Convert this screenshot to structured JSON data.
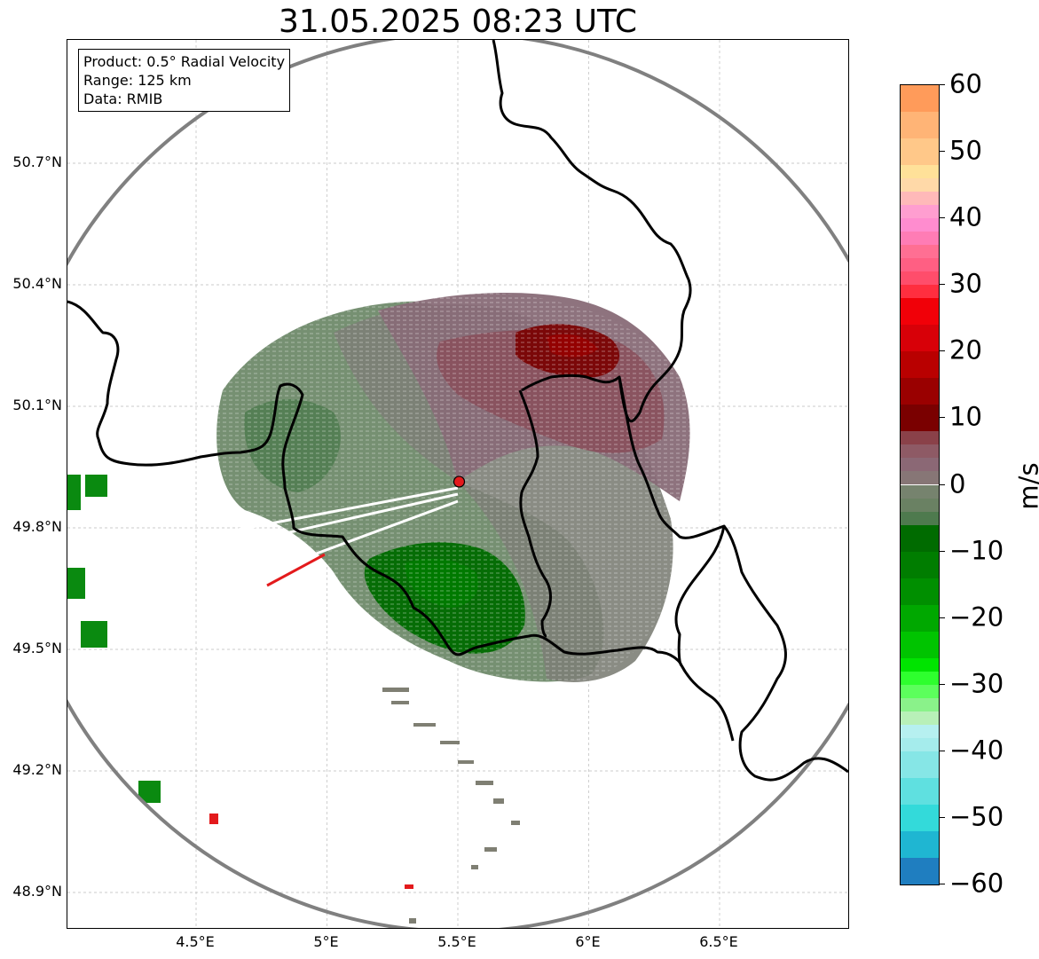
{
  "title": "31.05.2025 08:23 UTC",
  "info_box": {
    "product": "Product: 0.5° Radial Velocity",
    "range": "Range: 125 km",
    "source": "Data: RMIB"
  },
  "map": {
    "lon_range": [
      4.0,
      7.0
    ],
    "lat_range": [
      48.8,
      50.98
    ],
    "radar_site": {
      "lon": 5.505,
      "lat": 49.914,
      "color": "#e31a1c"
    },
    "range_ring_color": "#808080",
    "border_color": "#000000",
    "grid": true,
    "x_ticks": [
      {
        "value": 4.5,
        "label": "4.5°E"
      },
      {
        "value": 5.0,
        "label": "5°E"
      },
      {
        "value": 5.5,
        "label": "5.5°E"
      },
      {
        "value": 6.0,
        "label": "6°E"
      },
      {
        "value": 6.5,
        "label": "6.5°E"
      }
    ],
    "y_ticks": [
      {
        "value": 50.7,
        "label": "50.7°N"
      },
      {
        "value": 50.4,
        "label": "50.4°N"
      },
      {
        "value": 50.1,
        "label": "50.1°N"
      },
      {
        "value": 49.8,
        "label": "49.8°N"
      },
      {
        "value": 49.5,
        "label": "49.5°N"
      },
      {
        "value": 49.2,
        "label": "49.2°N"
      },
      {
        "value": 48.9,
        "label": "48.9°N"
      }
    ]
  },
  "colorbar": {
    "label": "m/s",
    "range": [
      -60,
      60
    ],
    "ticks": [
      {
        "value": 60,
        "label": "60"
      },
      {
        "value": 50,
        "label": "50"
      },
      {
        "value": 40,
        "label": "40"
      },
      {
        "value": 30,
        "label": "30"
      },
      {
        "value": 20,
        "label": "20"
      },
      {
        "value": 10,
        "label": "10"
      },
      {
        "value": 0,
        "label": "0"
      },
      {
        "value": -10,
        "label": "−10"
      },
      {
        "value": -20,
        "label": "−20"
      },
      {
        "value": -30,
        "label": "−30"
      },
      {
        "value": -40,
        "label": "−40"
      },
      {
        "value": -50,
        "label": "−50"
      },
      {
        "value": -60,
        "label": "−60"
      }
    ],
    "color_stops": [
      {
        "from": 56,
        "to": 60,
        "color": "#ff9b5a"
      },
      {
        "from": 52,
        "to": 56,
        "color": "#ffb476"
      },
      {
        "from": 48,
        "to": 52,
        "color": "#ffc889"
      },
      {
        "from": 46,
        "to": 48,
        "color": "#ffe199"
      },
      {
        "from": 44,
        "to": 46,
        "color": "#ffd9a8"
      },
      {
        "from": 42,
        "to": 44,
        "color": "#ffb9b9"
      },
      {
        "from": 40,
        "to": 42,
        "color": "#ff9ed0"
      },
      {
        "from": 38,
        "to": 40,
        "color": "#ff8ccf"
      },
      {
        "from": 36,
        "to": 38,
        "color": "#ff7cb5"
      },
      {
        "from": 34,
        "to": 36,
        "color": "#ff6f93"
      },
      {
        "from": 32,
        "to": 34,
        "color": "#ff5f83"
      },
      {
        "from": 30,
        "to": 32,
        "color": "#ff4d6b"
      },
      {
        "from": 28,
        "to": 30,
        "color": "#ff2e3f"
      },
      {
        "from": 24,
        "to": 28,
        "color": "#f10008"
      },
      {
        "from": 20,
        "to": 24,
        "color": "#d80008"
      },
      {
        "from": 16,
        "to": 20,
        "color": "#b90000"
      },
      {
        "from": 12,
        "to": 16,
        "color": "#9a0000"
      },
      {
        "from": 8,
        "to": 12,
        "color": "#7a0000"
      },
      {
        "from": 6,
        "to": 8,
        "color": "#8a4149"
      },
      {
        "from": 4,
        "to": 6,
        "color": "#8e5a65"
      },
      {
        "from": 2,
        "to": 4,
        "color": "#8b6875"
      },
      {
        "from": 0,
        "to": 2,
        "color": "#877676"
      },
      {
        "from": -2,
        "to": 0,
        "color": "#76836e"
      },
      {
        "from": -4,
        "to": -2,
        "color": "#6a8163"
      },
      {
        "from": -6,
        "to": -4,
        "color": "#4e7a4e"
      },
      {
        "from": -10,
        "to": -6,
        "color": "#006b00"
      },
      {
        "from": -14,
        "to": -10,
        "color": "#007d00"
      },
      {
        "from": -18,
        "to": -14,
        "color": "#008f00"
      },
      {
        "from": -22,
        "to": -18,
        "color": "#00a800"
      },
      {
        "from": -26,
        "to": -22,
        "color": "#00c400"
      },
      {
        "from": -28,
        "to": -26,
        "color": "#00e400"
      },
      {
        "from": -30,
        "to": -28,
        "color": "#2eff2e"
      },
      {
        "from": -32,
        "to": -30,
        "color": "#5cff5c"
      },
      {
        "from": -34,
        "to": -32,
        "color": "#8af28a"
      },
      {
        "from": -36,
        "to": -34,
        "color": "#b8f0b8"
      },
      {
        "from": -38,
        "to": -36,
        "color": "#b6f0f0"
      },
      {
        "from": -40,
        "to": -38,
        "color": "#a5ecec"
      },
      {
        "from": -44,
        "to": -40,
        "color": "#86e6e6"
      },
      {
        "from": -48,
        "to": -44,
        "color": "#5fe0e0"
      },
      {
        "from": -52,
        "to": -48,
        "color": "#33dada"
      },
      {
        "from": -56,
        "to": -52,
        "color": "#1fb6d2"
      },
      {
        "from": -60,
        "to": -56,
        "color": "#1f7ec0"
      }
    ]
  }
}
